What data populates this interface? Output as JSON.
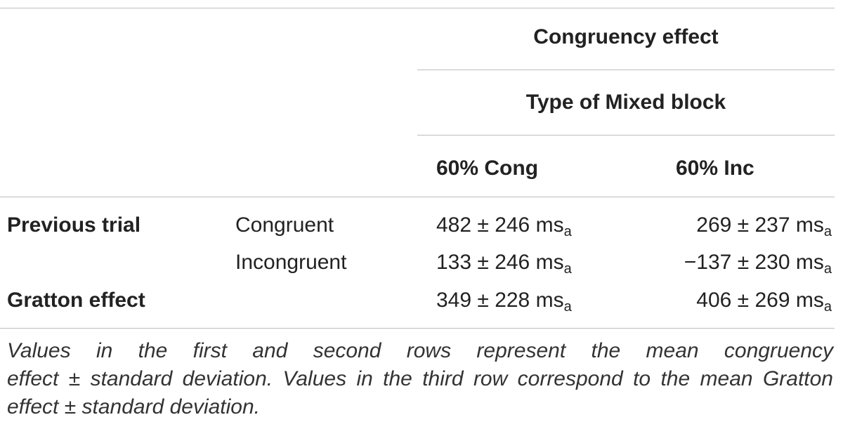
{
  "table": {
    "header_group": "Congruency effect",
    "header_subgroup": "Type of Mixed block",
    "columns": [
      "60% Cong",
      "60% Inc"
    ],
    "rows": [
      {
        "group": "Previous trial",
        "condition": "Congruent",
        "values": [
          "482 ± 246 ms",
          "269 ± 237 ms"
        ],
        "subscripts": [
          "a",
          "a"
        ]
      },
      {
        "group": "",
        "condition": "Incongruent",
        "values": [
          "133 ± 246 ms",
          "−137 ± 230 ms"
        ],
        "subscripts": [
          "a",
          "a"
        ]
      },
      {
        "group": "Gratton effect",
        "condition": "",
        "values": [
          "349 ± 228 ms",
          "406 ± 269 ms"
        ],
        "subscripts": [
          "a",
          "a"
        ]
      }
    ]
  },
  "caption": {
    "lines": [
      "Values in the first and second rows represent the mean congruency",
      "effect ± standard deviation. Values in the third row correspond to the mean Gratton",
      "effect ± standard deviation."
    ]
  }
}
